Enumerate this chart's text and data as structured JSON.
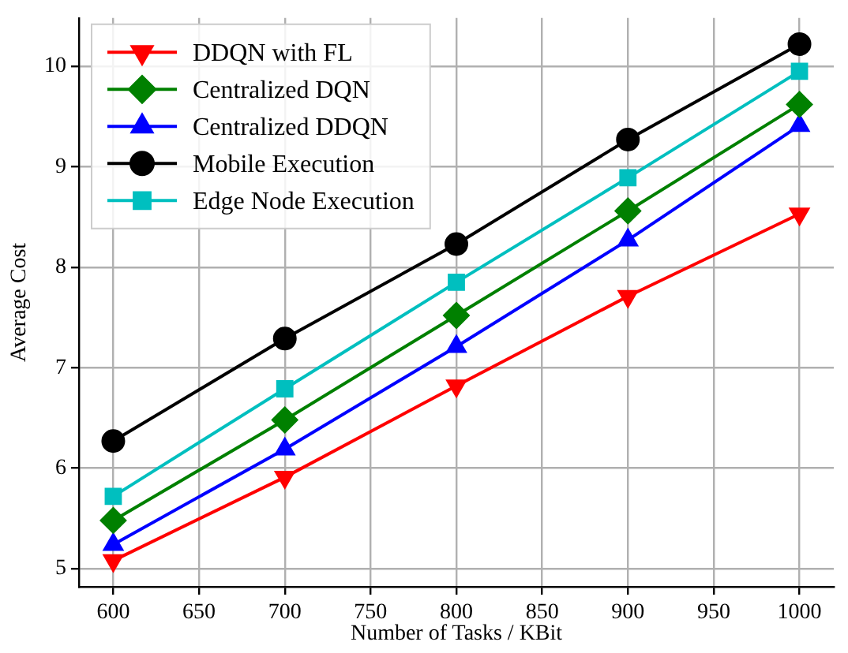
{
  "chart_data": {
    "type": "line",
    "xlabel": "Number of Tasks / KBit",
    "ylabel": "Average Cost",
    "x": [
      600,
      700,
      800,
      900,
      1000
    ],
    "series": [
      {
        "name": "DDQN with FL",
        "color": "#ff0000",
        "marker": "triangle_down",
        "values": [
          5.08,
          5.91,
          6.82,
          7.71,
          8.53
        ]
      },
      {
        "name": "Centralized DQN",
        "color": "#008000",
        "marker": "diamond",
        "values": [
          5.48,
          6.48,
          7.52,
          8.56,
          9.62
        ]
      },
      {
        "name": "Centralized DDQN",
        "color": "#0000ff",
        "marker": "triangle",
        "values": [
          5.24,
          6.19,
          7.21,
          8.27,
          9.41
        ]
      },
      {
        "name": "Mobile Execution",
        "color": "#000000",
        "marker": "circle",
        "values": [
          6.27,
          7.29,
          8.23,
          9.27,
          10.22
        ]
      },
      {
        "name": "Edge Node Execution",
        "color": "#00bfbf",
        "marker": "square",
        "values": [
          5.72,
          6.79,
          7.85,
          8.89,
          9.95
        ]
      }
    ],
    "xlim": [
      580,
      1020
    ],
    "xticks": [
      600,
      650,
      700,
      750,
      800,
      850,
      900,
      950,
      1000
    ],
    "ylim": [
      4.82,
      10.48
    ],
    "yticks": [
      5,
      6,
      7,
      8,
      9,
      10
    ],
    "grid": true,
    "legend": "top left",
    "line_style": "solid"
  }
}
